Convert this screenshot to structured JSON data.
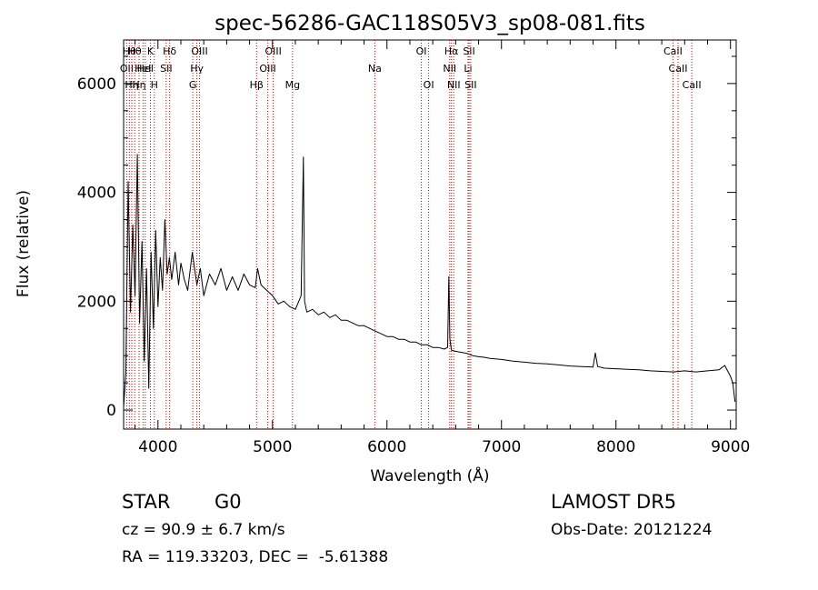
{
  "chart_data": {
    "type": "line",
    "title": "spec-56286-GAC118S05V3_sp08-081.fits",
    "xlabel": "Wavelength (Å)",
    "ylabel": "Flux (relative)",
    "xlim": [
      3700,
      9050
    ],
    "ylim": [
      -350,
      6800
    ],
    "xticks": [
      4000,
      5000,
      6000,
      7000,
      8000,
      9000
    ],
    "yticks": [
      0,
      2000,
      4000,
      6000
    ],
    "line_color": "#000000",
    "marker_color": "#cc0000",
    "series": [
      {
        "points": [
          [
            3700,
            50
          ],
          [
            3720,
            700
          ],
          [
            3740,
            4200
          ],
          [
            3760,
            1800
          ],
          [
            3780,
            3400
          ],
          [
            3800,
            2100
          ],
          [
            3820,
            4700
          ],
          [
            3840,
            1600
          ],
          [
            3860,
            3100
          ],
          [
            3880,
            900
          ],
          [
            3900,
            2600
          ],
          [
            3920,
            400
          ],
          [
            3940,
            2900
          ],
          [
            3960,
            1500
          ],
          [
            3980,
            3300
          ],
          [
            4000,
            1900
          ],
          [
            4020,
            2800
          ],
          [
            4040,
            2200
          ],
          [
            4060,
            3500
          ],
          [
            4080,
            2500
          ],
          [
            4100,
            2800
          ],
          [
            4120,
            2400
          ],
          [
            4150,
            2900
          ],
          [
            4180,
            2300
          ],
          [
            4200,
            2700
          ],
          [
            4230,
            2400
          ],
          [
            4260,
            2200
          ],
          [
            4300,
            2900
          ],
          [
            4340,
            2300
          ],
          [
            4370,
            2600
          ],
          [
            4400,
            2100
          ],
          [
            4450,
            2500
          ],
          [
            4500,
            2300
          ],
          [
            4550,
            2600
          ],
          [
            4600,
            2200
          ],
          [
            4650,
            2450
          ],
          [
            4700,
            2200
          ],
          [
            4750,
            2500
          ],
          [
            4800,
            2300
          ],
          [
            4850,
            2250
          ],
          [
            4870,
            2600
          ],
          [
            4900,
            2300
          ],
          [
            4950,
            2200
          ],
          [
            5000,
            2100
          ],
          [
            5050,
            1950
          ],
          [
            5100,
            2000
          ],
          [
            5150,
            1900
          ],
          [
            5200,
            1850
          ],
          [
            5250,
            2100
          ],
          [
            5270,
            4650
          ],
          [
            5280,
            2000
          ],
          [
            5300,
            1800
          ],
          [
            5350,
            1850
          ],
          [
            5400,
            1750
          ],
          [
            5450,
            1800
          ],
          [
            5500,
            1700
          ],
          [
            5550,
            1750
          ],
          [
            5600,
            1650
          ],
          [
            5650,
            1650
          ],
          [
            5700,
            1600
          ],
          [
            5750,
            1550
          ],
          [
            5800,
            1550
          ],
          [
            5850,
            1500
          ],
          [
            5900,
            1450
          ],
          [
            5950,
            1400
          ],
          [
            6000,
            1350
          ],
          [
            6050,
            1350
          ],
          [
            6100,
            1300
          ],
          [
            6150,
            1300
          ],
          [
            6200,
            1250
          ],
          [
            6250,
            1250
          ],
          [
            6300,
            1200
          ],
          [
            6350,
            1200
          ],
          [
            6400,
            1150
          ],
          [
            6450,
            1150
          ],
          [
            6500,
            1120
          ],
          [
            6530,
            1150
          ],
          [
            6540,
            2450
          ],
          [
            6550,
            1300
          ],
          [
            6563,
            1100
          ],
          [
            6600,
            1080
          ],
          [
            6650,
            1060
          ],
          [
            6700,
            1040
          ],
          [
            6750,
            1000
          ],
          [
            6800,
            980
          ],
          [
            6850,
            970
          ],
          [
            6900,
            950
          ],
          [
            7000,
            930
          ],
          [
            7100,
            900
          ],
          [
            7200,
            880
          ],
          [
            7300,
            860
          ],
          [
            7400,
            850
          ],
          [
            7500,
            830
          ],
          [
            7600,
            810
          ],
          [
            7700,
            800
          ],
          [
            7800,
            790
          ],
          [
            7820,
            1050
          ],
          [
            7840,
            800
          ],
          [
            7900,
            770
          ],
          [
            8000,
            760
          ],
          [
            8100,
            750
          ],
          [
            8200,
            740
          ],
          [
            8300,
            720
          ],
          [
            8400,
            710
          ],
          [
            8500,
            700
          ],
          [
            8600,
            720
          ],
          [
            8700,
            700
          ],
          [
            8800,
            720
          ],
          [
            8900,
            740
          ],
          [
            8950,
            820
          ],
          [
            9000,
            620
          ],
          [
            9020,
            500
          ],
          [
            9040,
            150
          ]
        ]
      }
    ],
    "lines": [
      {
        "wl": 3727,
        "label": "OII",
        "row": 1
      },
      {
        "wl": 3750,
        "label": "Hθ",
        "row": 0
      },
      {
        "wl": 3771,
        "label": "Hη",
        "row": 2
      },
      {
        "wl": 3797,
        "label": "Hθ",
        "row": 0
      },
      {
        "wl": 3835,
        "label": "Hη",
        "row": 2
      },
      {
        "wl": 3869,
        "label": "HeI",
        "row": 1
      },
      {
        "wl": 3889,
        "label": "HeI",
        "row": 1
      },
      {
        "wl": 3934,
        "label": "K",
        "row": 0
      },
      {
        "wl": 3968,
        "label": "H",
        "row": 2
      },
      {
        "wl": 4102,
        "label": "Hδ",
        "row": 0
      },
      {
        "wl": 4072,
        "label": "SII",
        "row": 1
      },
      {
        "wl": 4304,
        "label": "G",
        "row": 2
      },
      {
        "wl": 4340,
        "label": "Hγ",
        "row": 1
      },
      {
        "wl": 4363,
        "label": "OIII",
        "row": 0
      },
      {
        "wl": 4861,
        "label": "Hβ",
        "row": 2
      },
      {
        "wl": 4959,
        "label": "OIII",
        "row": 1
      },
      {
        "wl": 5007,
        "label": "OIII",
        "row": 0
      },
      {
        "wl": 5175,
        "label": "Mg",
        "row": 2
      },
      {
        "wl": 5894,
        "label": "Na",
        "row": 1
      },
      {
        "wl": 6300,
        "label": "OI",
        "row": 0
      },
      {
        "wl": 6364,
        "label": "OI",
        "row": 2
      },
      {
        "wl": 6548,
        "label": "NII",
        "row": 1
      },
      {
        "wl": 6563,
        "label": "Hα",
        "row": 0
      },
      {
        "wl": 6583,
        "label": "NII",
        "row": 2
      },
      {
        "wl": 6708,
        "label": "Li",
        "row": 1
      },
      {
        "wl": 6717,
        "label": "SII",
        "row": 0
      },
      {
        "wl": 6731,
        "label": "SII",
        "row": 2
      },
      {
        "wl": 8498,
        "label": "CaII",
        "row": 0
      },
      {
        "wl": 8542,
        "label": "CaII",
        "row": 1
      },
      {
        "wl": 8662,
        "label": "CaII",
        "row": 2
      }
    ]
  },
  "info": {
    "class": "STAR",
    "subclass": "G0",
    "survey": "LAMOST DR5",
    "cz": "cz = 90.9 ± 6.7 km/s",
    "obs_date": "Obs-Date: 20121224",
    "coords": "RA = 119.33203, DEC =  -5.61388"
  }
}
